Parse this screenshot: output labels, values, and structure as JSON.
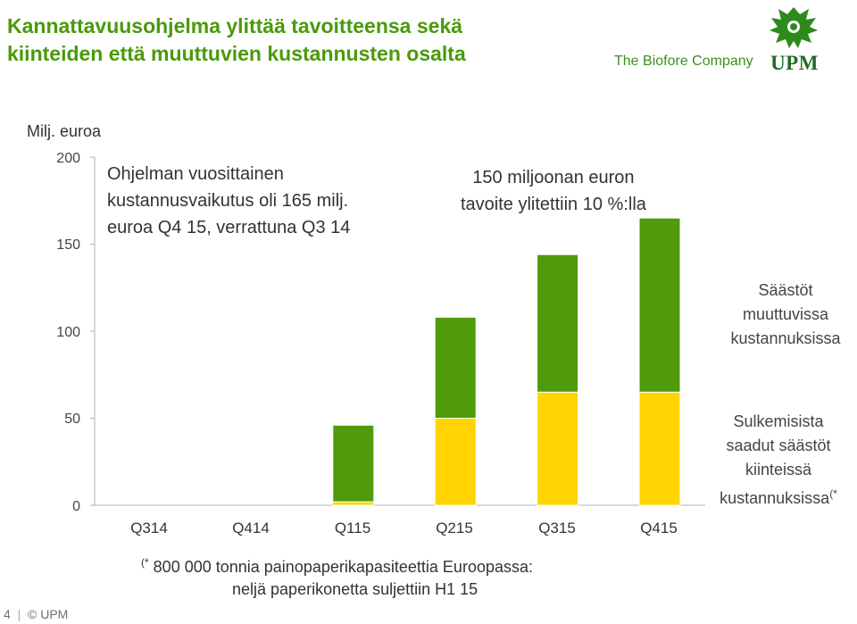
{
  "header": {
    "title_line1": "Kannattavuusohjelma ylittää tavoitteensa sekä",
    "title_line2": "kiinteiden että muuttuvien kustannusten osalta",
    "tagline": "The Biofore Company",
    "brand": "UPM"
  },
  "annotations": {
    "left_line1": "Ohjelman vuosittainen",
    "left_line2": "kustannusvaikutus oli 165 milj.",
    "left_line3": "euroa Q4 15, verrattuna Q3 14",
    "right_line1": "150 miljoonan euron",
    "right_line2": "tavoite ylitettiin 10 %:lla"
  },
  "side_labels": {
    "variable_line1": "Säästöt",
    "variable_line2": "muuttuvissa",
    "variable_line3": "kustannuksissa",
    "fixed_line1": "Sulkemisista",
    "fixed_line2": "saadut säästöt",
    "fixed_line3": "kiinteissä",
    "fixed_line4": "kustannuksissa",
    "fixed_marker": "(*"
  },
  "footnote": {
    "marker": "(*",
    "line1": " 800 000 tonnia painopaperikapasiteettia Euroopassa:",
    "line2": "neljä paperikonetta suljettiin H1 15"
  },
  "footer": {
    "page": "4",
    "copyright": "© UPM"
  },
  "colors": {
    "green": "#4f9b0c",
    "yellow": "#ffd400",
    "title": "#4a9a0a",
    "axis": "#b0b0b0"
  },
  "chart_data": {
    "type": "bar",
    "stacked": true,
    "unit_label": "Milj. euroa",
    "categories": [
      "Q314",
      "Q414",
      "Q115",
      "Q215",
      "Q315",
      "Q415"
    ],
    "series": [
      {
        "name": "Sulkemisista saadut säästöt kiinteissä kustannuksissa",
        "color": "#ffd400",
        "values": [
          0,
          0,
          2,
          50,
          65,
          65
        ]
      },
      {
        "name": "Säästöt muuttuvissa kustannuksissa",
        "color": "#4f9b0c",
        "values": [
          0,
          0,
          44,
          58,
          79,
          100
        ]
      }
    ],
    "yticks": [
      0,
      50,
      100,
      150,
      200
    ],
    "ylim": [
      0,
      200
    ],
    "totals": [
      0,
      0,
      46,
      108,
      144,
      165
    ]
  }
}
